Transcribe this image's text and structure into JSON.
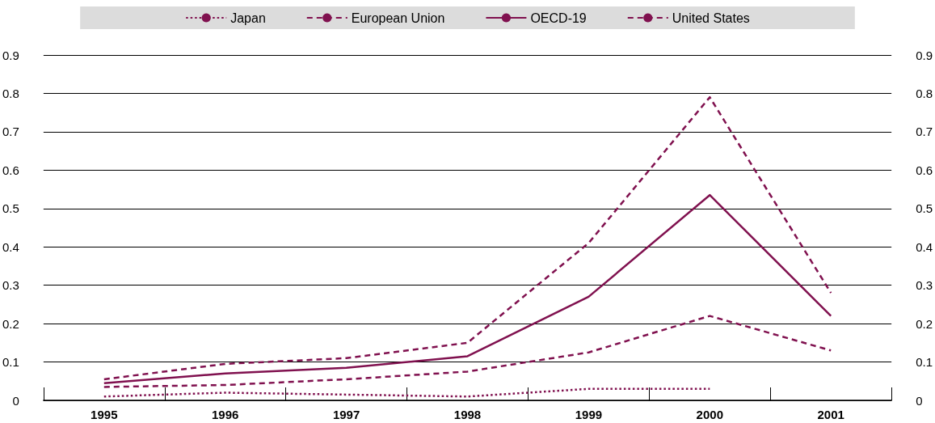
{
  "chart_data": {
    "type": "line",
    "categories": [
      "1995",
      "1996",
      "1997",
      "1998",
      "1999",
      "2000",
      "2001"
    ],
    "series": [
      {
        "name": "Japan",
        "color": "#80114f",
        "line_style": "dotted",
        "values": [
          0.01,
          0.02,
          0.015,
          0.01,
          0.03,
          0.03,
          null
        ]
      },
      {
        "name": "European Union",
        "color": "#80114f",
        "line_style": "dashed",
        "values": [
          0.035,
          0.04,
          0.055,
          0.075,
          0.125,
          0.22,
          0.13
        ]
      },
      {
        "name": "OECD-19",
        "color": "#80114f",
        "line_style": "solid",
        "values": [
          0.045,
          0.07,
          0.085,
          0.115,
          0.27,
          0.535,
          0.22
        ]
      },
      {
        "name": "United States",
        "color": "#80114f",
        "line_style": "dashed",
        "values": [
          0.055,
          0.095,
          0.11,
          0.15,
          0.41,
          0.79,
          0.28
        ]
      }
    ],
    "ylim": [
      0,
      0.9
    ],
    "yticks": [
      0,
      0.1,
      0.2,
      0.3,
      0.4,
      0.5,
      0.6,
      0.7,
      0.8,
      0.9
    ],
    "y2lim": [
      0,
      0.9
    ],
    "y2ticks": [
      0,
      0.1,
      0.2,
      0.3,
      0.4,
      0.5,
      0.6,
      0.7,
      0.8,
      0.9
    ],
    "grid": "y",
    "legend": "top",
    "marker": "none"
  }
}
